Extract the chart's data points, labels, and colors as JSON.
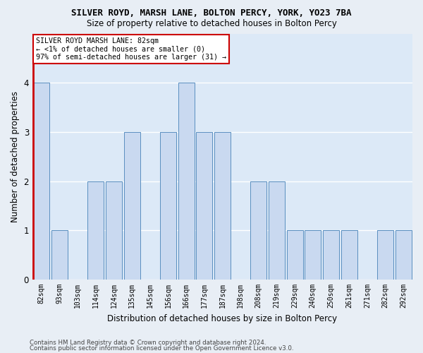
{
  "title1": "SILVER ROYD, MARSH LANE, BOLTON PERCY, YORK, YO23 7BA",
  "title2": "Size of property relative to detached houses in Bolton Percy",
  "xlabel": "Distribution of detached houses by size in Bolton Percy",
  "ylabel": "Number of detached properties",
  "categories": [
    "82sqm",
    "93sqm",
    "103sqm",
    "114sqm",
    "124sqm",
    "135sqm",
    "145sqm",
    "156sqm",
    "166sqm",
    "177sqm",
    "187sqm",
    "198sqm",
    "208sqm",
    "219sqm",
    "229sqm",
    "240sqm",
    "250sqm",
    "261sqm",
    "271sqm",
    "282sqm",
    "292sqm"
  ],
  "values": [
    4,
    1,
    0,
    2,
    2,
    3,
    0,
    3,
    4,
    3,
    3,
    0,
    2,
    2,
    1,
    1,
    1,
    1,
    0,
    1,
    1
  ],
  "highlight_index": 0,
  "bar_color": "#c9d9f0",
  "bar_edge_color": "#5a8fc0",
  "highlight_line_color": "#cc0000",
  "annotation_text": "SILVER ROYD MARSH LANE: 82sqm\n← <1% of detached houses are smaller (0)\n97% of semi-detached houses are larger (31) →",
  "annotation_box_edge": "#cc0000",
  "ylim": [
    0,
    5
  ],
  "yticks": [
    0,
    1,
    2,
    3,
    4
  ],
  "grid_color": "#ffffff",
  "bg_color": "#dce9f7",
  "fig_bg_color": "#e8eef5",
  "footer1": "Contains HM Land Registry data © Crown copyright and database right 2024.",
  "footer2": "Contains public sector information licensed under the Open Government Licence v3.0."
}
